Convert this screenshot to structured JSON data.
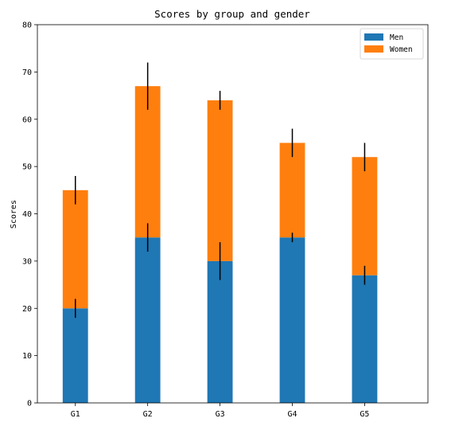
{
  "chart_data": {
    "type": "bar",
    "stacked": true,
    "title": "Scores by group and gender",
    "xlabel": "",
    "ylabel": "Scores",
    "categories": [
      "G1",
      "G2",
      "G3",
      "G4",
      "G5"
    ],
    "series": [
      {
        "name": "Men",
        "color": "#1f77b4",
        "values": [
          20,
          35,
          30,
          35,
          27
        ],
        "errors": [
          2,
          3,
          4,
          1,
          2
        ]
      },
      {
        "name": "Women",
        "color": "#ff7f0e",
        "values": [
          25,
          32,
          34,
          20,
          25
        ],
        "errors": [
          3,
          5,
          2,
          3,
          3
        ]
      }
    ],
    "ylim": [
      0,
      80
    ],
    "yticks": [
      0,
      10,
      20,
      30,
      40,
      50,
      60,
      70,
      80
    ],
    "grid": false,
    "legend_position": "top-right"
  }
}
